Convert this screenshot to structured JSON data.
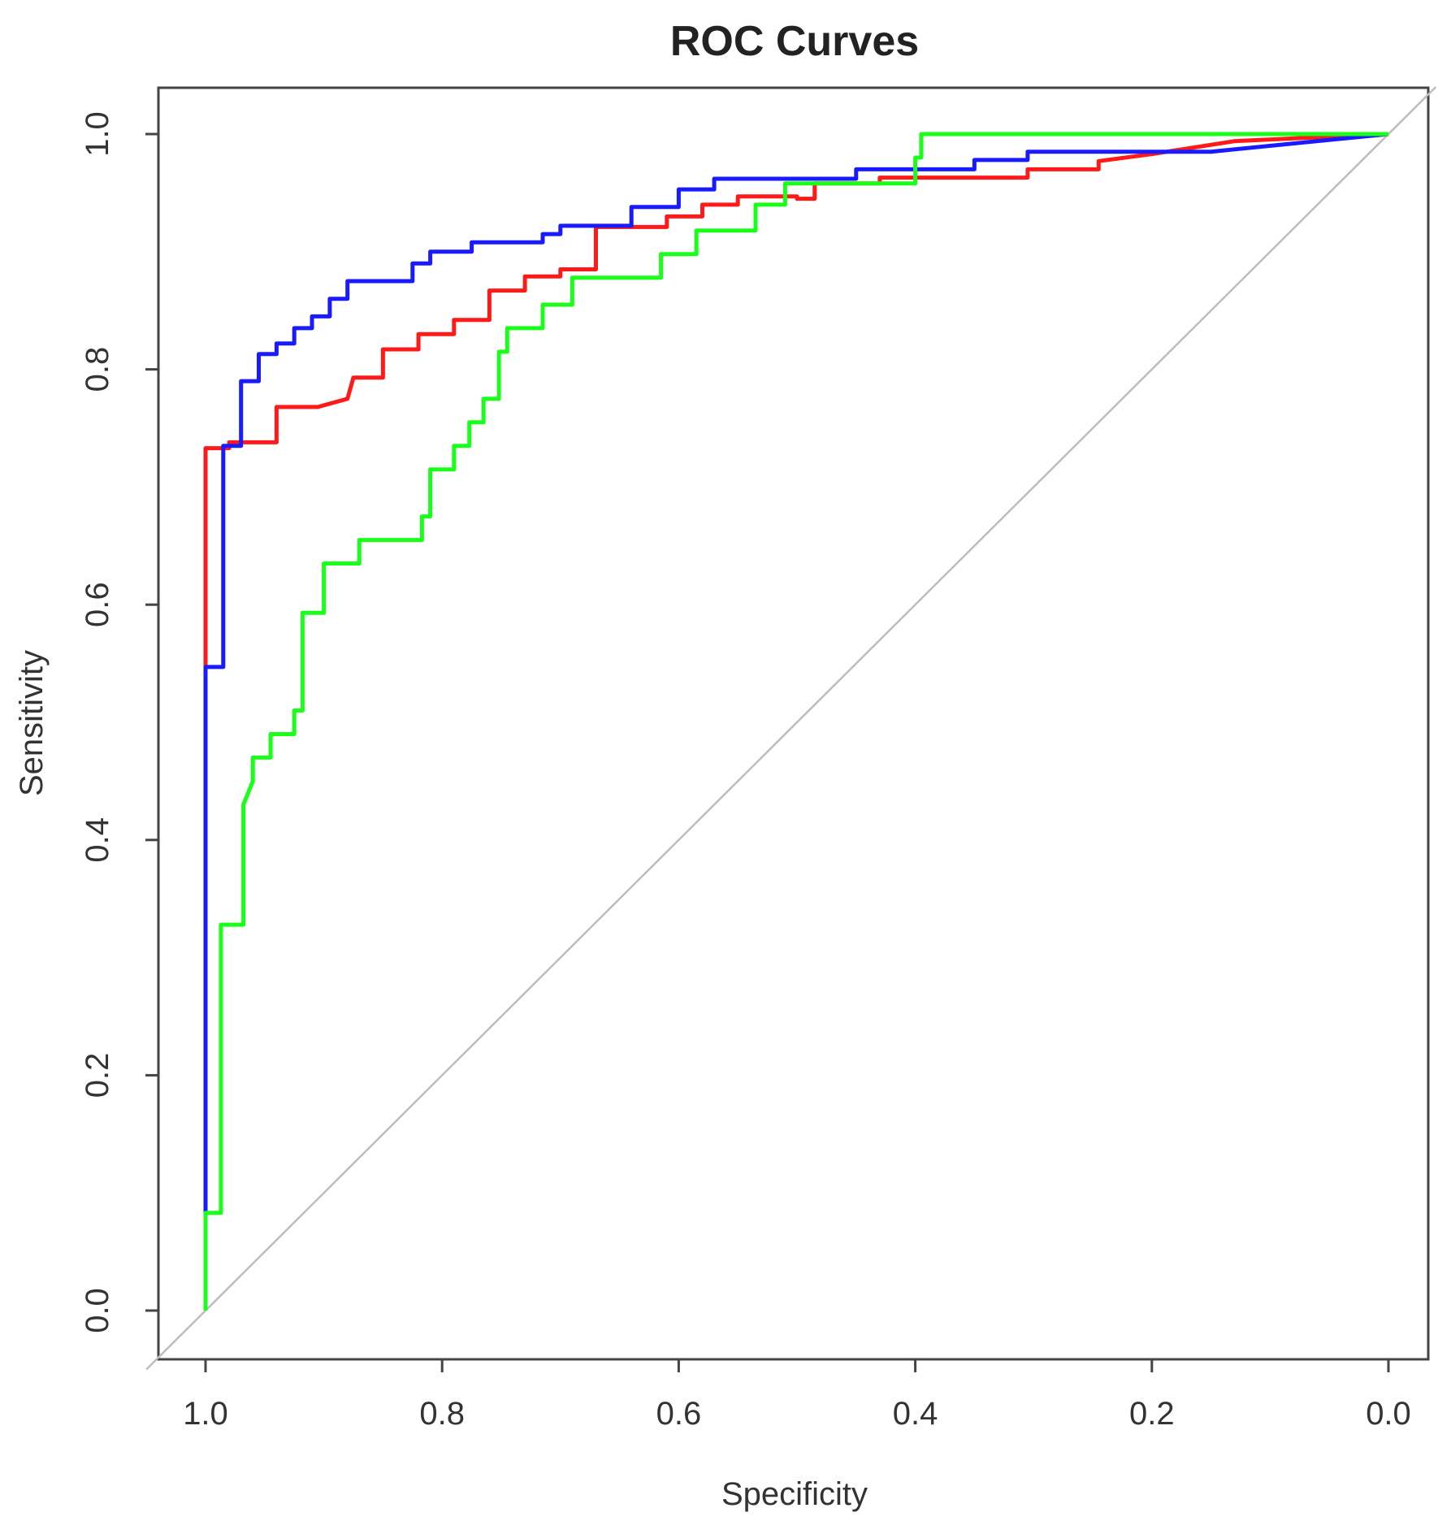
{
  "chart_data": {
    "type": "line",
    "title": "ROC Curves",
    "xlabel": "Specificity",
    "ylabel": "Sensitivity",
    "xlim": [
      1.0,
      0.0
    ],
    "ylim": [
      0.0,
      1.0
    ],
    "x_reversed": true,
    "x_ticks": [
      1.0,
      0.8,
      0.6,
      0.4,
      0.2,
      0.0
    ],
    "x_tick_labels": [
      "1.0",
      "0.8",
      "0.6",
      "0.4",
      "0.2",
      "0.0"
    ],
    "y_ticks": [
      0.0,
      0.2,
      0.4,
      0.6,
      0.8,
      1.0
    ],
    "y_tick_labels": [
      "0.0",
      "0.2",
      "0.4",
      "0.6",
      "0.8",
      "1.0"
    ],
    "grid": false,
    "reference_line": {
      "from": [
        1.0,
        0.0
      ],
      "to": [
        0.0,
        1.0
      ],
      "color": "#bdbdbd"
    },
    "series": [
      {
        "name": "red",
        "color": "#ff1a1a",
        "points": [
          [
            1.0,
            0.0
          ],
          [
            1.0,
            0.55
          ],
          [
            1.0,
            0.733
          ],
          [
            0.98,
            0.733
          ],
          [
            0.98,
            0.738
          ],
          [
            0.94,
            0.738
          ],
          [
            0.94,
            0.768
          ],
          [
            0.905,
            0.768
          ],
          [
            0.88,
            0.775
          ],
          [
            0.875,
            0.793
          ],
          [
            0.85,
            0.793
          ],
          [
            0.85,
            0.817
          ],
          [
            0.82,
            0.817
          ],
          [
            0.82,
            0.83
          ],
          [
            0.79,
            0.83
          ],
          [
            0.79,
            0.842
          ],
          [
            0.76,
            0.842
          ],
          [
            0.76,
            0.867
          ],
          [
            0.73,
            0.867
          ],
          [
            0.73,
            0.879
          ],
          [
            0.7,
            0.879
          ],
          [
            0.7,
            0.885
          ],
          [
            0.67,
            0.885
          ],
          [
            0.67,
            0.921
          ],
          [
            0.61,
            0.921
          ],
          [
            0.61,
            0.93
          ],
          [
            0.58,
            0.93
          ],
          [
            0.58,
            0.94
          ],
          [
            0.55,
            0.94
          ],
          [
            0.55,
            0.947
          ],
          [
            0.5,
            0.947
          ],
          [
            0.5,
            0.945
          ],
          [
            0.485,
            0.945
          ],
          [
            0.485,
            0.958
          ],
          [
            0.43,
            0.958
          ],
          [
            0.43,
            0.963
          ],
          [
            0.305,
            0.963
          ],
          [
            0.305,
            0.97
          ],
          [
            0.245,
            0.97
          ],
          [
            0.245,
            0.977
          ],
          [
            0.2,
            0.983
          ],
          [
            0.13,
            0.994
          ],
          [
            0.0,
            1.0
          ]
        ]
      },
      {
        "name": "blue",
        "color": "#1a1aff",
        "points": [
          [
            1.0,
            0.0
          ],
          [
            1.0,
            0.085
          ],
          [
            1.0,
            0.547
          ],
          [
            0.985,
            0.547
          ],
          [
            0.985,
            0.735
          ],
          [
            0.97,
            0.735
          ],
          [
            0.97,
            0.79
          ],
          [
            0.955,
            0.79
          ],
          [
            0.955,
            0.813
          ],
          [
            0.94,
            0.813
          ],
          [
            0.94,
            0.822
          ],
          [
            0.925,
            0.822
          ],
          [
            0.925,
            0.835
          ],
          [
            0.91,
            0.835
          ],
          [
            0.91,
            0.845
          ],
          [
            0.895,
            0.845
          ],
          [
            0.895,
            0.86
          ],
          [
            0.88,
            0.86
          ],
          [
            0.88,
            0.875
          ],
          [
            0.825,
            0.875
          ],
          [
            0.825,
            0.89
          ],
          [
            0.81,
            0.89
          ],
          [
            0.81,
            0.9
          ],
          [
            0.775,
            0.9
          ],
          [
            0.775,
            0.908
          ],
          [
            0.715,
            0.908
          ],
          [
            0.715,
            0.915
          ],
          [
            0.7,
            0.915
          ],
          [
            0.7,
            0.922
          ],
          [
            0.64,
            0.922
          ],
          [
            0.64,
            0.938
          ],
          [
            0.6,
            0.938
          ],
          [
            0.6,
            0.953
          ],
          [
            0.57,
            0.953
          ],
          [
            0.57,
            0.962
          ],
          [
            0.45,
            0.962
          ],
          [
            0.45,
            0.97
          ],
          [
            0.35,
            0.97
          ],
          [
            0.35,
            0.978
          ],
          [
            0.305,
            0.978
          ],
          [
            0.305,
            0.985
          ],
          [
            0.2,
            0.985
          ],
          [
            0.15,
            0.985
          ],
          [
            0.0,
            1.0
          ]
        ]
      },
      {
        "name": "green",
        "color": "#1aff1a",
        "points": [
          [
            1.0,
            0.0
          ],
          [
            1.0,
            0.083
          ],
          [
            0.987,
            0.083
          ],
          [
            0.987,
            0.328
          ],
          [
            0.968,
            0.328
          ],
          [
            0.968,
            0.43
          ],
          [
            0.96,
            0.45
          ],
          [
            0.96,
            0.47
          ],
          [
            0.945,
            0.47
          ],
          [
            0.945,
            0.49
          ],
          [
            0.925,
            0.49
          ],
          [
            0.925,
            0.51
          ],
          [
            0.918,
            0.51
          ],
          [
            0.918,
            0.593
          ],
          [
            0.9,
            0.593
          ],
          [
            0.9,
            0.635
          ],
          [
            0.87,
            0.635
          ],
          [
            0.87,
            0.655
          ],
          [
            0.817,
            0.655
          ],
          [
            0.817,
            0.675
          ],
          [
            0.81,
            0.675
          ],
          [
            0.81,
            0.715
          ],
          [
            0.79,
            0.715
          ],
          [
            0.79,
            0.735
          ],
          [
            0.777,
            0.735
          ],
          [
            0.777,
            0.755
          ],
          [
            0.765,
            0.755
          ],
          [
            0.765,
            0.775
          ],
          [
            0.752,
            0.775
          ],
          [
            0.752,
            0.815
          ],
          [
            0.745,
            0.815
          ],
          [
            0.745,
            0.835
          ],
          [
            0.715,
            0.835
          ],
          [
            0.715,
            0.855
          ],
          [
            0.69,
            0.855
          ],
          [
            0.69,
            0.878
          ],
          [
            0.615,
            0.878
          ],
          [
            0.615,
            0.898
          ],
          [
            0.585,
            0.898
          ],
          [
            0.585,
            0.918
          ],
          [
            0.535,
            0.918
          ],
          [
            0.535,
            0.94
          ],
          [
            0.51,
            0.94
          ],
          [
            0.51,
            0.958
          ],
          [
            0.4,
            0.958
          ],
          [
            0.4,
            0.98
          ],
          [
            0.395,
            0.98
          ],
          [
            0.395,
            1.0
          ],
          [
            0.0,
            1.0
          ]
        ]
      }
    ]
  }
}
